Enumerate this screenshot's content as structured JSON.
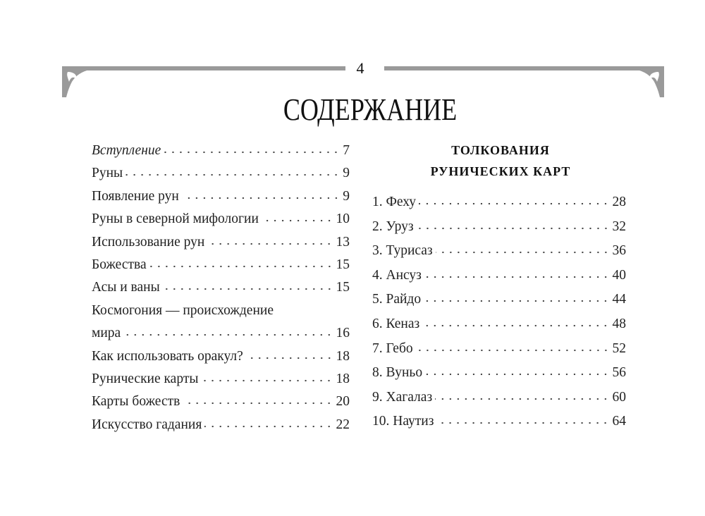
{
  "page_number": "4",
  "title": "СОДЕРЖАНИЕ",
  "ornament_color": "#9a9a9a",
  "left_entries": [
    {
      "label": "Вступление",
      "page": "7",
      "italic": true
    },
    {
      "label": "Руны",
      "page": "9"
    },
    {
      "label": "Появление рун",
      "page": "9"
    },
    {
      "label": "Руны в северной мифологии",
      "page": "10"
    },
    {
      "label": "Использование рун",
      "page": "13"
    },
    {
      "label": "Божества",
      "page": "15"
    },
    {
      "label": "Асы и ваны",
      "page": "15"
    },
    {
      "label": "Космогония — происхождение",
      "page": ""
    },
    {
      "label": "мира",
      "page": "16"
    },
    {
      "label": "Как использовать оракул?",
      "page": "18"
    },
    {
      "label": "Рунические карты",
      "page": "18"
    },
    {
      "label": "Карты божеств",
      "page": "20"
    },
    {
      "label": "Искусство гадания",
      "page": "22"
    }
  ],
  "right_heading": [
    "ТОЛКОВАНИЯ",
    "РУНИЧЕСКИХ КАРТ"
  ],
  "right_entries": [
    {
      "label": "1. Феху",
      "page": "28"
    },
    {
      "label": "2. Уруз",
      "page": "32"
    },
    {
      "label": "3. Турисаз",
      "page": "36"
    },
    {
      "label": "4. Ансуз",
      "page": "40"
    },
    {
      "label": "5. Райдо",
      "page": "44"
    },
    {
      "label": "6. Кеназ",
      "page": "48"
    },
    {
      "label": "7. Гебо",
      "page": "52"
    },
    {
      "label": "8. Вуньо",
      "page": "56"
    },
    {
      "label": "9. Хагалаз",
      "page": "60"
    },
    {
      "label": "10. Наутиз",
      "page": "64"
    }
  ]
}
